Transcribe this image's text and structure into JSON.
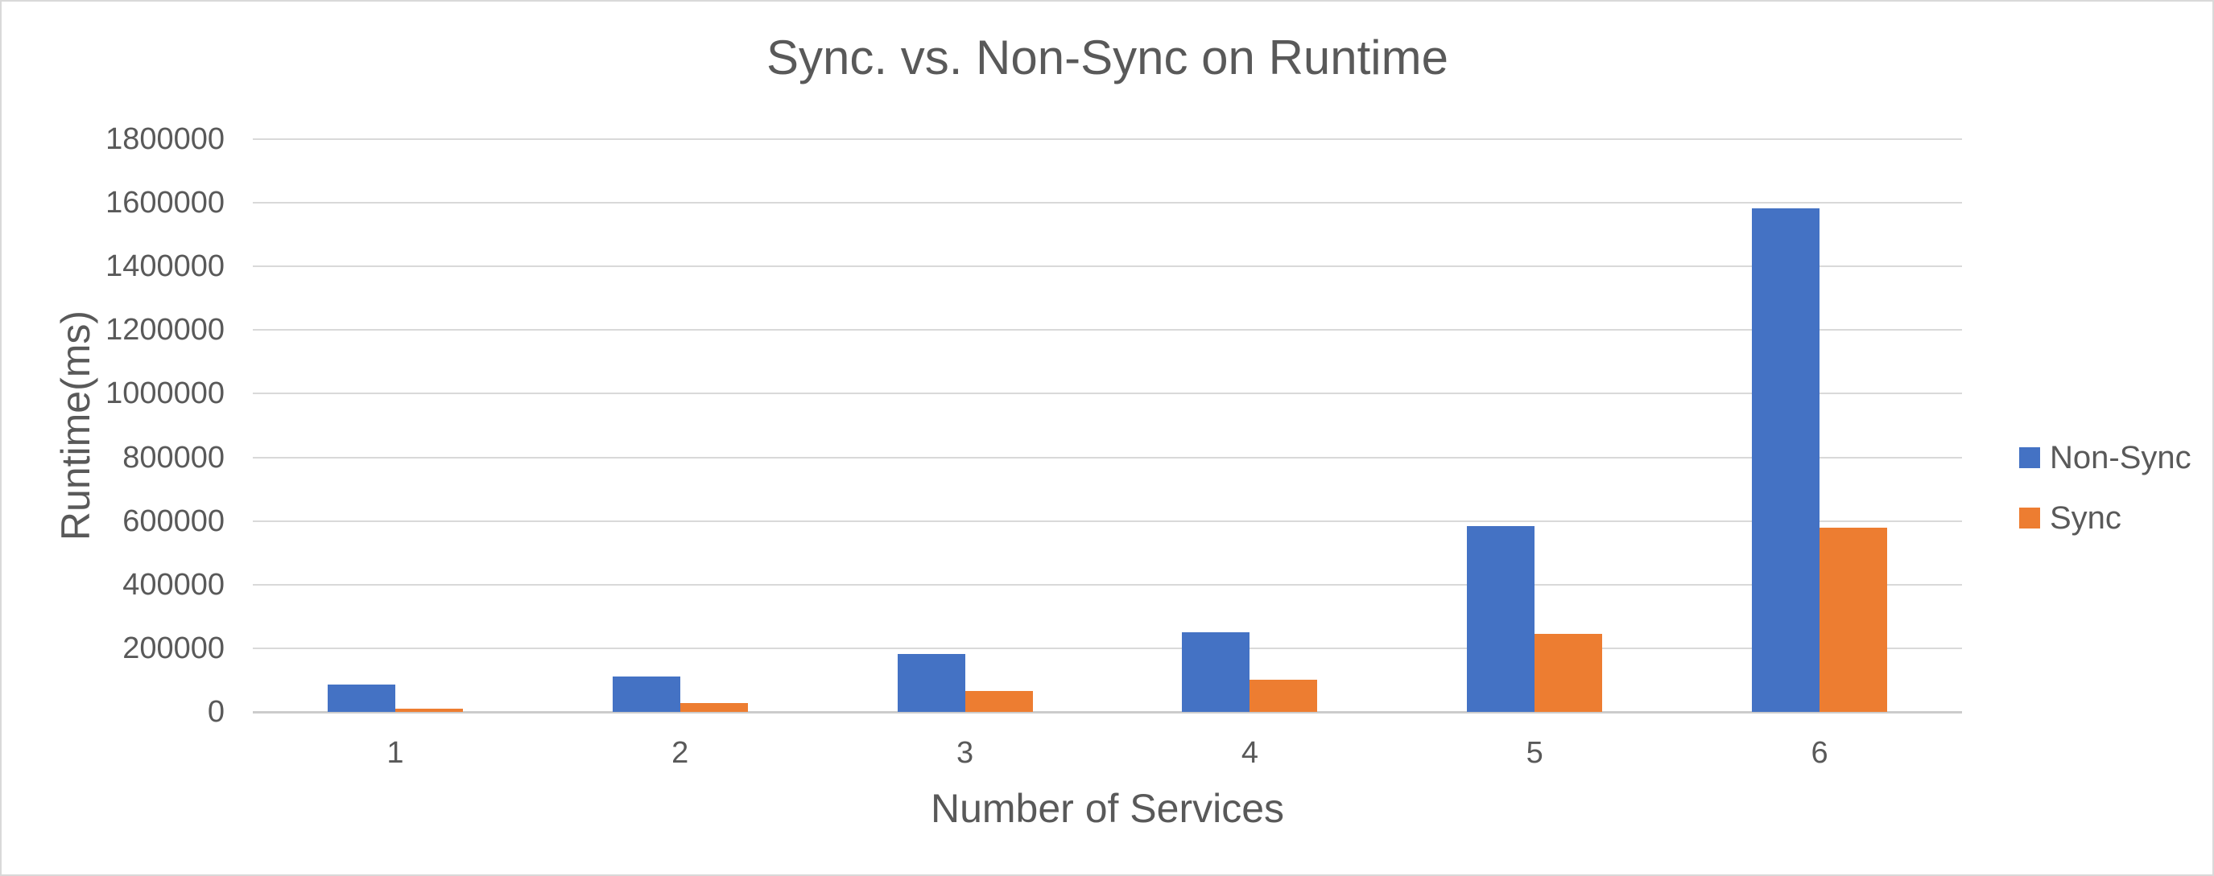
{
  "chart_data": {
    "type": "bar",
    "title": "Sync. vs. Non-Sync on Runtime",
    "xlabel": "Number of Services",
    "ylabel": "Runtime(ms)",
    "categories": [
      "1",
      "2",
      "3",
      "4",
      "5",
      "6"
    ],
    "series": [
      {
        "name": "Non-Sync",
        "color": "#4472C4",
        "values": [
          85000,
          112000,
          181000,
          251000,
          585000,
          1582000
        ]
      },
      {
        "name": "Sync",
        "color": "#ED7D31",
        "values": [
          11000,
          28000,
          66000,
          100000,
          245000,
          578000
        ]
      }
    ],
    "ylim": [
      0,
      1800000
    ],
    "ytick_step": 200000,
    "ytick_labels": [
      "0",
      "200000",
      "400000",
      "600000",
      "800000",
      "1000000",
      "1200000",
      "1400000",
      "1600000",
      "1800000"
    ],
    "grid": "horizontal",
    "gridline_color": "#D9D9D9",
    "axis_line_color": "#CCCCCC",
    "text_color": "#595959",
    "legend_position": "right",
    "legend_labels": [
      "Non-Sync",
      "Sync"
    ]
  }
}
